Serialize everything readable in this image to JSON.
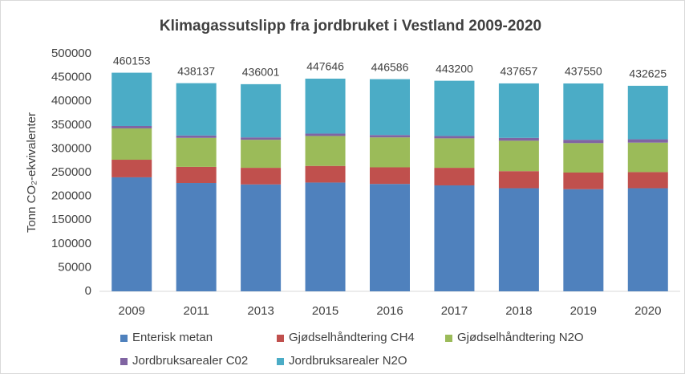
{
  "chart_data": {
    "type": "stacked_bar",
    "title": "Klimagassutslipp fra jordbruket i Vestland 2009-2020",
    "y_label": "Tonn CO₂-ekvivalenter",
    "categories": [
      "2009",
      "2011",
      "2013",
      "2015",
      "2016",
      "2017",
      "2018",
      "2019",
      "2020"
    ],
    "series": [
      {
        "name": "Enterisk metan",
        "color": "#4f81bd",
        "values": [
          240000,
          228000,
          225000,
          229000,
          226000,
          223000,
          217000,
          215000,
          217000
        ]
      },
      {
        "name": "Gjødselhåndtering CH4",
        "color": "#c0504d",
        "values": [
          37000,
          34000,
          35000,
          35000,
          35000,
          37000,
          36000,
          35000,
          34000
        ]
      },
      {
        "name": "Gjødselhåndtering N2O",
        "color": "#9bbb59",
        "values": [
          66000,
          61000,
          59000,
          63000,
          63000,
          62000,
          64000,
          62000,
          62000
        ]
      },
      {
        "name": "Jordbruksarealer C02",
        "color": "#8064a2",
        "values": [
          5000,
          5000,
          5000,
          5000,
          5000,
          5000,
          6000,
          7000,
          7000
        ]
      },
      {
        "name": "Jordbruksarealer N2O",
        "color": "#4bacc6",
        "values": [
          112153,
          110137,
          112001,
          115646,
          117586,
          116200,
          114657,
          118550,
          112625
        ]
      }
    ],
    "totals": [
      460153,
      438137,
      436001,
      447646,
      446586,
      443200,
      437657,
      437550,
      432625
    ],
    "ylim": [
      0,
      500000
    ],
    "yticks": [
      0,
      50000,
      100000,
      150000,
      200000,
      250000,
      300000,
      350000,
      400000,
      450000,
      500000
    ],
    "grid": false,
    "legend": "bottom"
  }
}
